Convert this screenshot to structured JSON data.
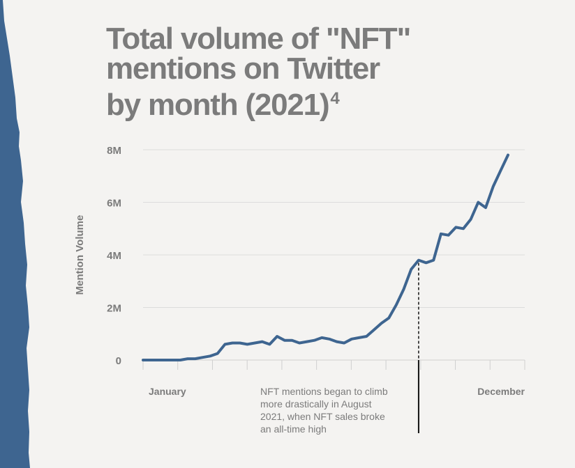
{
  "title_lines": [
    "Total volume of \"NFT\"",
    "mentions on Twitter",
    "by month (2021)"
  ],
  "title_superscript": "4",
  "colors": {
    "line": "#3e6590",
    "text": "#7b7b7b",
    "grid": "#dcdcdc",
    "edge": "#3e6590",
    "background": "#f4f3f1"
  },
  "chart_data": {
    "type": "line",
    "title": "Total volume of \"NFT\" mentions on Twitter by month (2021)",
    "ylabel": "Mention Volume",
    "yticks": [
      {
        "value": 0,
        "label": "0"
      },
      {
        "value": 2000000,
        "label": "2M"
      },
      {
        "value": 4000000,
        "label": "4M"
      },
      {
        "value": 6000000,
        "label": "6M"
      },
      {
        "value": 8000000,
        "label": "8M"
      }
    ],
    "ylim": [
      0,
      8000000
    ],
    "grid": true,
    "xlabels": {
      "start": "January",
      "end": "December"
    },
    "series": [
      {
        "values": [
          0,
          0,
          0,
          0,
          0,
          0,
          50000,
          50000,
          100000,
          150000,
          250000,
          600000,
          650000,
          650000,
          600000,
          650000,
          700000,
          600000,
          900000,
          750000,
          750000,
          650000,
          700000,
          750000,
          850000,
          800000,
          700000,
          650000,
          800000,
          850000,
          900000,
          1150000,
          1400000,
          1600000,
          2100000,
          2700000,
          3450000,
          3800000,
          3700000,
          3800000,
          4800000,
          4750000,
          5050000,
          5000000,
          5350000,
          6000000,
          5800000,
          6600000,
          7200000,
          7800000
        ]
      }
    ],
    "annotation": {
      "text": "NFT mentions began to climb more drastically in August 2021, when NFT sales broke an all-time high",
      "lines": [
        "NFT mentions began to climb",
        "more drastically in August",
        "2021, when NFT sales broke",
        "an all-time high"
      ],
      "point_index": 37
    }
  }
}
